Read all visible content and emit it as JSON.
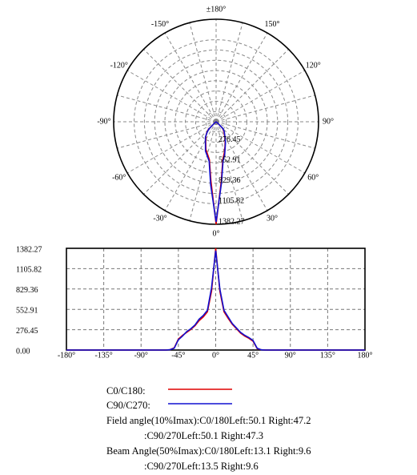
{
  "chart_data": [
    {
      "type": "polar",
      "angle_ticks": [
        {
          "value": 0,
          "label": "0°"
        },
        {
          "value": 30,
          "label": "30°"
        },
        {
          "value": 60,
          "label": "60°"
        },
        {
          "value": 90,
          "label": "90°"
        },
        {
          "value": 120,
          "label": "120°"
        },
        {
          "value": 150,
          "label": "150°"
        },
        {
          "value": 180,
          "label": "±180°"
        },
        {
          "value": -150,
          "label": "-150°"
        },
        {
          "value": -120,
          "label": "-120°"
        },
        {
          "value": -90,
          "label": "-90°"
        },
        {
          "value": -60,
          "label": "-60°"
        },
        {
          "value": -30,
          "label": "-30°"
        }
      ],
      "rlim": [
        0,
        1382.27
      ],
      "rticks": [
        276.45,
        552.91,
        829.36,
        1105.82,
        1382.27
      ],
      "grid": true,
      "x": [
        -180,
        -90,
        -60,
        -55,
        -50,
        -45,
        -40,
        -35,
        -30,
        -25,
        -20,
        -15,
        -10,
        -5,
        0,
        5,
        10,
        15,
        20,
        25,
        30,
        35,
        40,
        45,
        50,
        55,
        60,
        90,
        180
      ],
      "series": [
        {
          "name": "C0/C180",
          "color": "#e00000",
          "values": [
            0,
            0,
            0,
            5,
            30,
            150,
            200,
            240,
            280,
            330,
            400,
            450,
            520,
            800,
            1382.27,
            800,
            520,
            430,
            350,
            290,
            230,
            190,
            160,
            120,
            20,
            3,
            0,
            0,
            0
          ]
        },
        {
          "name": "C90/C270",
          "color": "#1010d0",
          "values": [
            0,
            0,
            0,
            5,
            25,
            140,
            190,
            250,
            290,
            340,
            420,
            470,
            540,
            850,
            1350,
            830,
            540,
            450,
            360,
            300,
            240,
            200,
            170,
            130,
            25,
            3,
            0,
            0,
            0
          ]
        }
      ]
    },
    {
      "type": "line",
      "xlim": [
        -180,
        180
      ],
      "xticks": [
        {
          "value": -180,
          "label": "-180°"
        },
        {
          "value": -135,
          "label": "-135°"
        },
        {
          "value": -90,
          "label": "-90°"
        },
        {
          "value": -45,
          "label": "-45°"
        },
        {
          "value": 0,
          "label": "0°"
        },
        {
          "value": 45,
          "label": "45°"
        },
        {
          "value": 90,
          "label": "90°"
        },
        {
          "value": 135,
          "label": "135°"
        },
        {
          "value": 180,
          "label": "180°"
        }
      ],
      "ylim": [
        0,
        1382.27
      ],
      "yticks": [
        {
          "value": 0,
          "label": "0.00"
        },
        276.45,
        552.91,
        829.36,
        1105.82,
        1382.27
      ],
      "grid": true,
      "x": [
        -180,
        -90,
        -60,
        -55,
        -50,
        -45,
        -40,
        -35,
        -30,
        -25,
        -20,
        -15,
        -10,
        -5,
        0,
        5,
        10,
        15,
        20,
        25,
        30,
        35,
        40,
        45,
        50,
        55,
        60,
        90,
        180
      ],
      "series": [
        {
          "name": "C0/C180:",
          "color": "#e00000",
          "values": [
            0,
            0,
            0,
            5,
            30,
            150,
            200,
            240,
            280,
            330,
            400,
            450,
            520,
            800,
            1382.27,
            800,
            520,
            430,
            350,
            290,
            230,
            190,
            160,
            120,
            20,
            3,
            0,
            0,
            0
          ]
        },
        {
          "name": "C90/C270:",
          "color": "#1010d0",
          "values": [
            0,
            0,
            0,
            5,
            25,
            140,
            190,
            250,
            290,
            340,
            420,
            470,
            540,
            850,
            1350,
            830,
            540,
            450,
            360,
            300,
            240,
            200,
            170,
            130,
            25,
            3,
            0,
            0,
            0
          ]
        }
      ],
      "annotations": [
        "Field angle(10%Imax):C0/180Left:50.1 Right:47.2",
        ":C90/270Left:50.1 Right:47.3",
        "Beam Angle(50%Imax):C0/180Left:13.1 Right:9.6",
        ":C90/270Left:13.5 Right:9.6"
      ]
    }
  ]
}
